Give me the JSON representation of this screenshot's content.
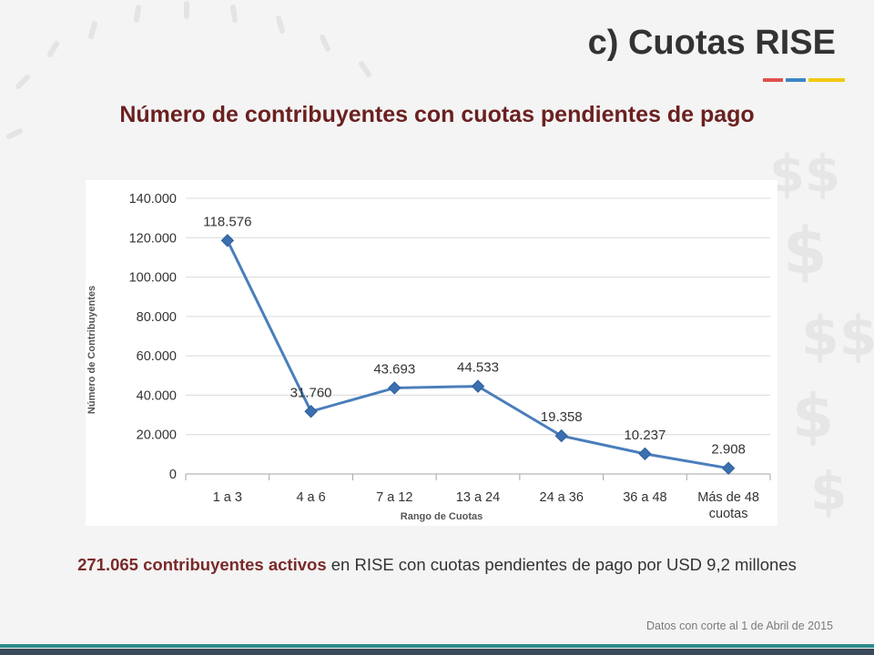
{
  "slide": {
    "title": "c) Cuotas RISE",
    "accent_colors": [
      "#e0514d",
      "#3d86c6",
      "#f2c811"
    ]
  },
  "summary": {
    "highlight": "271.065 contribuyentes activos",
    "rest": " en RISE con cuotas pendientes de pago por USD 9,2 millones",
    "highlight_color": "#7a2a2a"
  },
  "footnote": "Datos con corte al 1 de Abril de 2015",
  "chart_data": {
    "type": "line",
    "title": "Número de contribuyentes con cuotas pendientes de pago",
    "title_color": "#6b2020",
    "xlabel": "Rango de Cuotas",
    "ylabel": "Número de Contribuyentes",
    "categories": [
      "1 a 3",
      "4 a 6",
      "7 a 12",
      "13 a 24",
      "24 a 36",
      "36 a 48",
      "Más de 48 cuotas"
    ],
    "values": [
      118576,
      31760,
      43693,
      44533,
      19358,
      10237,
      2908
    ],
    "data_labels": [
      "118.576",
      "31.760",
      "43.693",
      "44.533",
      "19.358",
      "10.237",
      "2.908"
    ],
    "yticks": [
      0,
      20000,
      40000,
      60000,
      80000,
      100000,
      120000,
      140000
    ],
    "ytick_labels": [
      "0",
      "20.000",
      "40.000",
      "60.000",
      "80.000",
      "100.000",
      "120.000",
      "140.000"
    ],
    "ylim": [
      0,
      140000
    ],
    "grid": true,
    "marker": "diamond",
    "line_color": "#4a7ebb",
    "marker_color": "#3a6fb0"
  }
}
